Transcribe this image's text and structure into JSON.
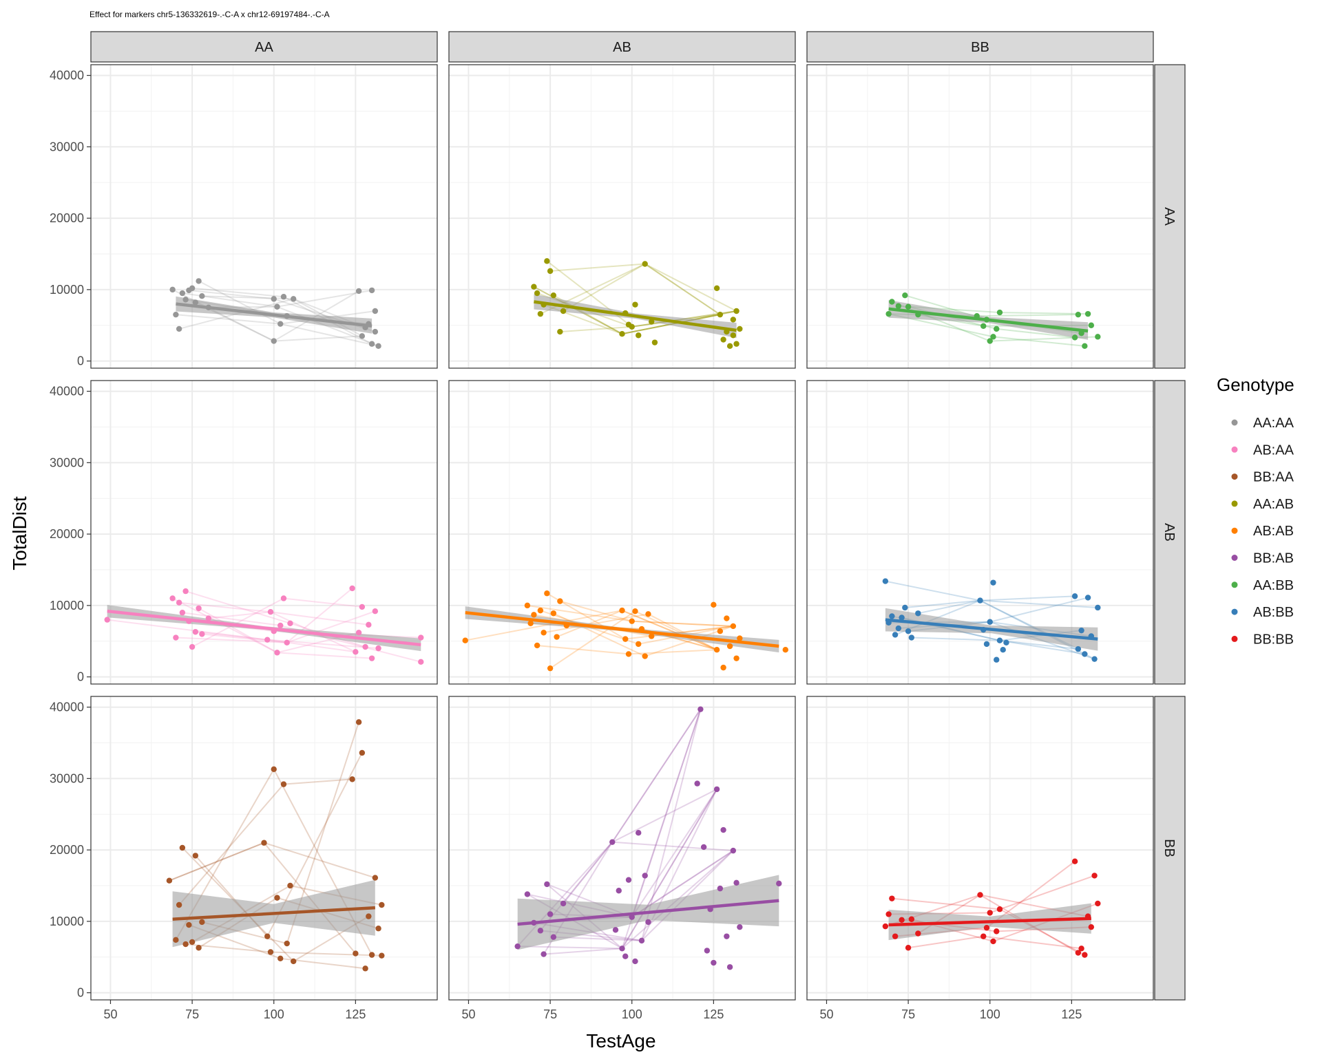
{
  "chart_data": {
    "type": "scatter",
    "title": "Effect for markers chr5-136332619-.-C-A x chr12-69197484-.-C-A",
    "xlabel": "TestAge",
    "ylabel": "TotalDist",
    "xlim": [
      44,
      150
    ],
    "ylim": [
      -1000,
      41500
    ],
    "x_ticks": [
      "50",
      "75",
      "100",
      "125"
    ],
    "y_ticks": [
      "0",
      "10000",
      "20000",
      "30000",
      "40000"
    ],
    "grid": true,
    "facet_columns": [
      "AA",
      "AB",
      "BB"
    ],
    "facet_rows": [
      "AA",
      "AB",
      "BB"
    ],
    "legend": {
      "title": "Genotype",
      "position": "right",
      "entries": [
        "AA:AA",
        "AB:AA",
        "BB:AA",
        "AA:AB",
        "AB:AB",
        "BB:AB",
        "AA:BB",
        "AB:BB",
        "BB:BB"
      ]
    },
    "colors": {
      "AA:AA": "#969696",
      "AB:AA": "#f781bf",
      "BB:AA": "#a65628",
      "AA:AB": "#999900",
      "AB:AB": "#ff7f00",
      "BB:AB": "#984ea3",
      "AA:BB": "#4daf4a",
      "AB:BB": "#377eb8",
      "BB:BB": "#e41a1c"
    },
    "panels": [
      {
        "row": "AA",
        "col": "AA",
        "genotype": "AA:AA",
        "fit": {
          "x": [
            70,
            130
          ],
          "y": [
            8000,
            4900
          ],
          "se": 600
        },
        "points": [
          [
            69,
            10000
          ],
          [
            70,
            6500
          ],
          [
            71,
            4500
          ],
          [
            72,
            9500
          ],
          [
            73,
            8600
          ],
          [
            74,
            9900
          ],
          [
            75,
            10200
          ],
          [
            76,
            8200
          ],
          [
            77,
            11200
          ],
          [
            78,
            9100
          ],
          [
            80,
            7500
          ],
          [
            100,
            2800
          ],
          [
            100,
            8700
          ],
          [
            101,
            7600
          ],
          [
            102,
            5200
          ],
          [
            103,
            9000
          ],
          [
            104,
            6300
          ],
          [
            106,
            8700
          ],
          [
            126,
            9800
          ],
          [
            127,
            3500
          ],
          [
            128,
            4700
          ],
          [
            129,
            5200
          ],
          [
            130,
            2400
          ],
          [
            131,
            7000
          ],
          [
            132,
            2100
          ],
          [
            130,
            9900
          ],
          [
            131,
            4100
          ]
        ]
      },
      {
        "row": "AA",
        "col": "AB",
        "genotype": "AA:AB",
        "fit": {
          "x": [
            70,
            132
          ],
          "y": [
            8300,
            4300
          ],
          "se": 600
        },
        "points": [
          [
            70,
            10400
          ],
          [
            71,
            9500
          ],
          [
            72,
            6600
          ],
          [
            73,
            7900
          ],
          [
            74,
            14000
          ],
          [
            75,
            12600
          ],
          [
            76,
            9200
          ],
          [
            78,
            4100
          ],
          [
            79,
            7000
          ],
          [
            97,
            3800
          ],
          [
            98,
            6700
          ],
          [
            99,
            5100
          ],
          [
            100,
            4800
          ],
          [
            101,
            7900
          ],
          [
            102,
            3600
          ],
          [
            104,
            13600
          ],
          [
            106,
            5500
          ],
          [
            107,
            2600
          ],
          [
            126,
            10200
          ],
          [
            127,
            6500
          ],
          [
            128,
            3000
          ],
          [
            129,
            4100
          ],
          [
            130,
            2100
          ],
          [
            131,
            5800
          ],
          [
            132,
            7000
          ],
          [
            131,
            3600
          ],
          [
            132,
            2400
          ],
          [
            133,
            4500
          ]
        ]
      },
      {
        "row": "AA",
        "col": "BB",
        "genotype": "AA:BB",
        "fit": {
          "x": [
            69,
            130
          ],
          "y": [
            7300,
            4200
          ],
          "se": 700
        },
        "points": [
          [
            69,
            6600
          ],
          [
            70,
            8300
          ],
          [
            72,
            7700
          ],
          [
            74,
            9200
          ],
          [
            75,
            7600
          ],
          [
            78,
            6500
          ],
          [
            96,
            6300
          ],
          [
            98,
            4900
          ],
          [
            99,
            5800
          ],
          [
            100,
            2800
          ],
          [
            101,
            3400
          ],
          [
            102,
            4500
          ],
          [
            103,
            6800
          ],
          [
            126,
            3300
          ],
          [
            127,
            6500
          ],
          [
            128,
            3900
          ],
          [
            129,
            2100
          ],
          [
            130,
            6600
          ],
          [
            131,
            5000
          ],
          [
            133,
            3400
          ]
        ]
      },
      {
        "row": "AB",
        "col": "AA",
        "genotype": "AB:AA",
        "fit": {
          "x": [
            49,
            145
          ],
          "y": [
            9200,
            4500
          ],
          "se": 400
        },
        "points": [
          [
            49,
            8000
          ],
          [
            69,
            11000
          ],
          [
            70,
            5500
          ],
          [
            71,
            10400
          ],
          [
            72,
            9000
          ],
          [
            73,
            12000
          ],
          [
            74,
            7800
          ],
          [
            75,
            4200
          ],
          [
            76,
            6300
          ],
          [
            77,
            9600
          ],
          [
            78,
            6000
          ],
          [
            80,
            8200
          ],
          [
            98,
            5200
          ],
          [
            99,
            9100
          ],
          [
            100,
            6400
          ],
          [
            101,
            3400
          ],
          [
            102,
            7200
          ],
          [
            103,
            11000
          ],
          [
            104,
            4800
          ],
          [
            105,
            7500
          ],
          [
            124,
            12400
          ],
          [
            125,
            3500
          ],
          [
            126,
            6200
          ],
          [
            127,
            9800
          ],
          [
            128,
            4200
          ],
          [
            129,
            7300
          ],
          [
            130,
            2600
          ],
          [
            131,
            9200
          ],
          [
            132,
            4000
          ],
          [
            145,
            5500
          ],
          [
            145,
            2100
          ]
        ]
      },
      {
        "row": "AB",
        "col": "AB",
        "genotype": "AB:AB",
        "fit": {
          "x": [
            49,
            145
          ],
          "y": [
            9000,
            4300
          ],
          "se": 400
        },
        "points": [
          [
            49,
            5100
          ],
          [
            68,
            10000
          ],
          [
            69,
            7500
          ],
          [
            70,
            8700
          ],
          [
            71,
            4400
          ],
          [
            72,
            9300
          ],
          [
            73,
            6200
          ],
          [
            74,
            11700
          ],
          [
            75,
            1200
          ],
          [
            76,
            8900
          ],
          [
            77,
            5600
          ],
          [
            78,
            10600
          ],
          [
            80,
            7200
          ],
          [
            97,
            9300
          ],
          [
            98,
            5300
          ],
          [
            99,
            3200
          ],
          [
            100,
            7800
          ],
          [
            101,
            9200
          ],
          [
            102,
            4600
          ],
          [
            103,
            6700
          ],
          [
            104,
            2900
          ],
          [
            105,
            8800
          ],
          [
            106,
            5700
          ],
          [
            125,
            10100
          ],
          [
            126,
            3800
          ],
          [
            127,
            6400
          ],
          [
            128,
            1300
          ],
          [
            129,
            8200
          ],
          [
            130,
            4300
          ],
          [
            131,
            7100
          ],
          [
            132,
            2600
          ],
          [
            133,
            5400
          ],
          [
            147,
            3800
          ]
        ]
      },
      {
        "row": "AB",
        "col": "BB",
        "genotype": "AB:BB",
        "fit": {
          "x": [
            68,
            133
          ],
          "y": [
            8000,
            5300
          ],
          "se": 900
        },
        "points": [
          [
            68,
            13400
          ],
          [
            69,
            7600
          ],
          [
            70,
            8500
          ],
          [
            71,
            5900
          ],
          [
            72,
            6800
          ],
          [
            73,
            8300
          ],
          [
            74,
            9700
          ],
          [
            75,
            6400
          ],
          [
            76,
            5500
          ],
          [
            78,
            8900
          ],
          [
            97,
            10700
          ],
          [
            98,
            6600
          ],
          [
            99,
            4600
          ],
          [
            100,
            7700
          ],
          [
            101,
            13200
          ],
          [
            102,
            2400
          ],
          [
            103,
            5100
          ],
          [
            104,
            3800
          ],
          [
            105,
            4800
          ],
          [
            126,
            11300
          ],
          [
            127,
            3900
          ],
          [
            128,
            6500
          ],
          [
            129,
            3200
          ],
          [
            130,
            11100
          ],
          [
            131,
            5700
          ],
          [
            132,
            2500
          ],
          [
            133,
            9700
          ]
        ]
      },
      {
        "row": "BB",
        "col": "AA",
        "genotype": "BB:AA",
        "fit": {
          "x": [
            69,
            131
          ],
          "y": [
            10300,
            11900
          ],
          "se": 2200
        },
        "points": [
          [
            68,
            15700
          ],
          [
            70,
            7400
          ],
          [
            71,
            12300
          ],
          [
            72,
            20300
          ],
          [
            73,
            6800
          ],
          [
            74,
            9500
          ],
          [
            75,
            7100
          ],
          [
            76,
            19200
          ],
          [
            77,
            6300
          ],
          [
            78,
            9900
          ],
          [
            97,
            21000
          ],
          [
            98,
            7900
          ],
          [
            99,
            5700
          ],
          [
            100,
            31300
          ],
          [
            101,
            13300
          ],
          [
            102,
            4800
          ],
          [
            103,
            29200
          ],
          [
            104,
            6900
          ],
          [
            105,
            15000
          ],
          [
            106,
            4400
          ],
          [
            124,
            29900
          ],
          [
            125,
            5500
          ],
          [
            126,
            37900
          ],
          [
            127,
            33600
          ],
          [
            128,
            3400
          ],
          [
            129,
            10700
          ],
          [
            130,
            5300
          ],
          [
            131,
            16100
          ],
          [
            132,
            9000
          ],
          [
            133,
            12300
          ],
          [
            133,
            5200
          ]
        ]
      },
      {
        "row": "BB",
        "col": "AB",
        "genotype": "BB:AB",
        "fit": {
          "x": [
            65,
            145
          ],
          "y": [
            9600,
            12900
          ],
          "se": 1800
        },
        "points": [
          [
            65,
            6500
          ],
          [
            68,
            13800
          ],
          [
            70,
            9800
          ],
          [
            72,
            8700
          ],
          [
            73,
            5400
          ],
          [
            74,
            15200
          ],
          [
            75,
            11000
          ],
          [
            76,
            7800
          ],
          [
            79,
            12500
          ],
          [
            94,
            21100
          ],
          [
            95,
            8800
          ],
          [
            96,
            14300
          ],
          [
            97,
            6200
          ],
          [
            98,
            5100
          ],
          [
            99,
            15800
          ],
          [
            100,
            10600
          ],
          [
            101,
            4400
          ],
          [
            102,
            22400
          ],
          [
            103,
            7300
          ],
          [
            104,
            16400
          ],
          [
            105,
            9900
          ],
          [
            120,
            29300
          ],
          [
            121,
            39700
          ],
          [
            122,
            20400
          ],
          [
            123,
            5900
          ],
          [
            124,
            11700
          ],
          [
            125,
            4200
          ],
          [
            126,
            28500
          ],
          [
            127,
            14600
          ],
          [
            128,
            22800
          ],
          [
            129,
            7900
          ],
          [
            130,
            3600
          ],
          [
            131,
            19900
          ],
          [
            132,
            15400
          ],
          [
            133,
            9200
          ],
          [
            145,
            15300
          ]
        ]
      },
      {
        "row": "BB",
        "col": "BB",
        "genotype": "BB:BB",
        "fit": {
          "x": [
            69,
            131
          ],
          "y": [
            9500,
            10400
          ],
          "se": 1200
        },
        "points": [
          [
            68,
            9300
          ],
          [
            69,
            11000
          ],
          [
            70,
            13200
          ],
          [
            71,
            7900
          ],
          [
            73,
            10200
          ],
          [
            75,
            6300
          ],
          [
            76,
            10300
          ],
          [
            78,
            8300
          ],
          [
            97,
            13700
          ],
          [
            98,
            7900
          ],
          [
            99,
            9100
          ],
          [
            100,
            11200
          ],
          [
            101,
            7200
          ],
          [
            102,
            8600
          ],
          [
            103,
            11700
          ],
          [
            126,
            18400
          ],
          [
            127,
            5600
          ],
          [
            128,
            6200
          ],
          [
            129,
            5300
          ],
          [
            130,
            10700
          ],
          [
            131,
            9200
          ],
          [
            132,
            16400
          ],
          [
            133,
            12500
          ]
        ]
      }
    ]
  }
}
